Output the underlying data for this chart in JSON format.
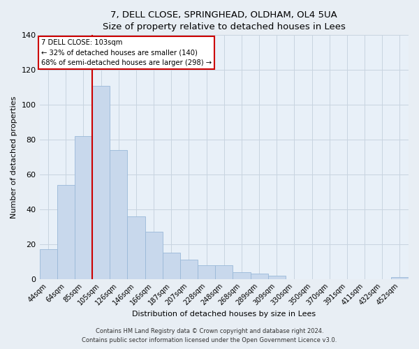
{
  "title": "7, DELL CLOSE, SPRINGHEAD, OLDHAM, OL4 5UA",
  "subtitle": "Size of property relative to detached houses in Lees",
  "xlabel": "Distribution of detached houses by size in Lees",
  "ylabel": "Number of detached properties",
  "bar_labels": [
    "44sqm",
    "64sqm",
    "85sqm",
    "105sqm",
    "126sqm",
    "146sqm",
    "166sqm",
    "187sqm",
    "207sqm",
    "228sqm",
    "248sqm",
    "268sqm",
    "289sqm",
    "309sqm",
    "330sqm",
    "350sqm",
    "370sqm",
    "391sqm",
    "411sqm",
    "432sqm",
    "452sqm"
  ],
  "bar_values": [
    17,
    54,
    82,
    111,
    74,
    36,
    27,
    15,
    11,
    8,
    8,
    4,
    3,
    2,
    0,
    0,
    0,
    0,
    0,
    0,
    1
  ],
  "bar_color": "#c8d8ec",
  "bar_edge_color": "#9ab8d8",
  "vline_x_index": 2.5,
  "vline_color": "#cc0000",
  "ylim": [
    0,
    140
  ],
  "yticks": [
    0,
    20,
    40,
    60,
    80,
    100,
    120,
    140
  ],
  "annotation_title": "7 DELL CLOSE: 103sqm",
  "annotation_line1": "← 32% of detached houses are smaller (140)",
  "annotation_line2": "68% of semi-detached houses are larger (298) →",
  "annotation_box_facecolor": "#ffffff",
  "annotation_box_edgecolor": "#cc0000",
  "footer1": "Contains HM Land Registry data © Crown copyright and database right 2024.",
  "footer2": "Contains public sector information licensed under the Open Government Licence v3.0.",
  "fig_facecolor": "#e8eef4",
  "plot_facecolor": "#e8f0f8",
  "grid_color": "#c8d4e0",
  "title_fontsize": 9.5,
  "subtitle_fontsize": 9,
  "tick_fontsize": 7,
  "axis_label_fontsize": 8,
  "footer_fontsize": 6
}
